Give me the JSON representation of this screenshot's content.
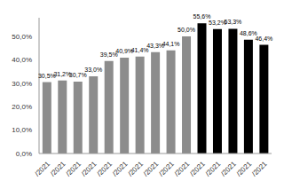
{
  "chart_data": {
    "type": "bar",
    "categories": [
      "/2021",
      "/2021",
      "/2021",
      "/2021",
      "/2021",
      "/2021",
      "/2021",
      "/2021",
      "/2021",
      "/2021",
      "/2021",
      "/2021",
      "/2021",
      "/2021",
      "/2021"
    ],
    "values": [
      30.5,
      31.2,
      30.7,
      33.0,
      39.5,
      40.9,
      41.4,
      43.3,
      44.1,
      50.0,
      55.6,
      53.2,
      53.3,
      48.6,
      46.4
    ],
    "value_labels": [
      "30,5%",
      "31,2%",
      "30,7%",
      "33,0%",
      "39,5%",
      "40,9%",
      "41,4%",
      "43,3%",
      "44,1%",
      "50,0%",
      "55,6%",
      "53,2%",
      "53,3%",
      "48,6%",
      "46,4%"
    ],
    "colors": [
      "#8c8c8c",
      "#8c8c8c",
      "#8c8c8c",
      "#8c8c8c",
      "#8c8c8c",
      "#8c8c8c",
      "#8c8c8c",
      "#8c8c8c",
      "#8c8c8c",
      "#8c8c8c",
      "#000000",
      "#000000",
      "#000000",
      "#000000",
      "#000000"
    ],
    "ylim": [
      0,
      58
    ],
    "yticks": [
      {
        "value": 0,
        "label": "0,0%"
      },
      {
        "value": 10,
        "label": "10,0%"
      },
      {
        "value": 20,
        "label": "20,0%"
      },
      {
        "value": 30,
        "label": "30,0%"
      },
      {
        "value": 40,
        "label": "40,0%"
      },
      {
        "value": 50,
        "label": "50,0%"
      }
    ],
    "grid": false,
    "data_labels": true
  }
}
